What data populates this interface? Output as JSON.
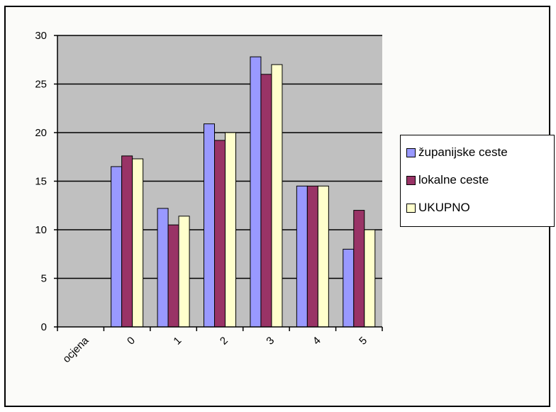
{
  "chart_data": {
    "type": "bar",
    "categories": [
      "ocjena",
      "0",
      "1",
      "2",
      "3",
      "4",
      "5"
    ],
    "series": [
      {
        "name": "županijske ceste",
        "color": "#9999ff",
        "values": [
          0,
          16.5,
          12.2,
          20.9,
          27.8,
          14.5,
          8.0
        ]
      },
      {
        "name": "lokalne ceste",
        "color": "#993366",
        "values": [
          0,
          17.6,
          10.5,
          19.2,
          26.0,
          14.5,
          12.0
        ]
      },
      {
        "name": "UKUPNO",
        "color": "#ffffcc",
        "values": [
          0,
          17.3,
          11.4,
          20.0,
          27.0,
          14.5,
          10.0
        ]
      }
    ],
    "yticks": [
      0,
      5,
      10,
      15,
      20,
      25,
      30
    ],
    "ylim": [
      0,
      30
    ],
    "grid": true,
    "plot_background": "#c0c0c0",
    "legend_position": "right"
  }
}
